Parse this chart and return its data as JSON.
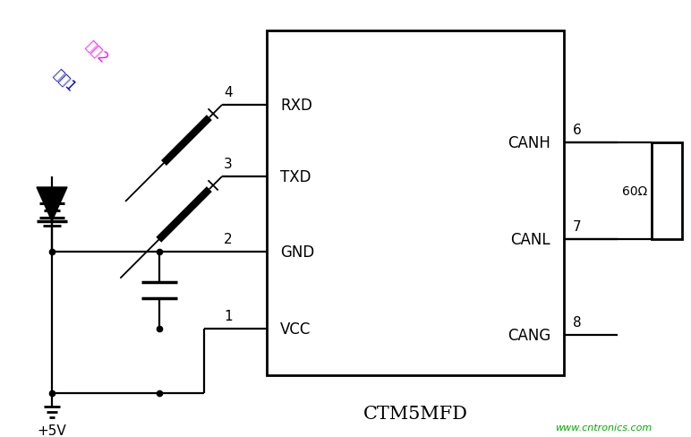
{
  "bg_color": "#ffffff",
  "line_color": "#000000",
  "probe2_color": "#ff00ff",
  "probe1_color": "#0000cc",
  "watermark_color": "#00aa00",
  "fig_width": 7.72,
  "fig_height": 4.89,
  "dpi": 100,
  "ic_label": "CTM5MFD",
  "vcc_label": "+5V",
  "resistor_label": "60Ω",
  "watermark_text": "www.cntronics.com",
  "probe2_text": "探夶2",
  "probe1_text": "探夶1"
}
